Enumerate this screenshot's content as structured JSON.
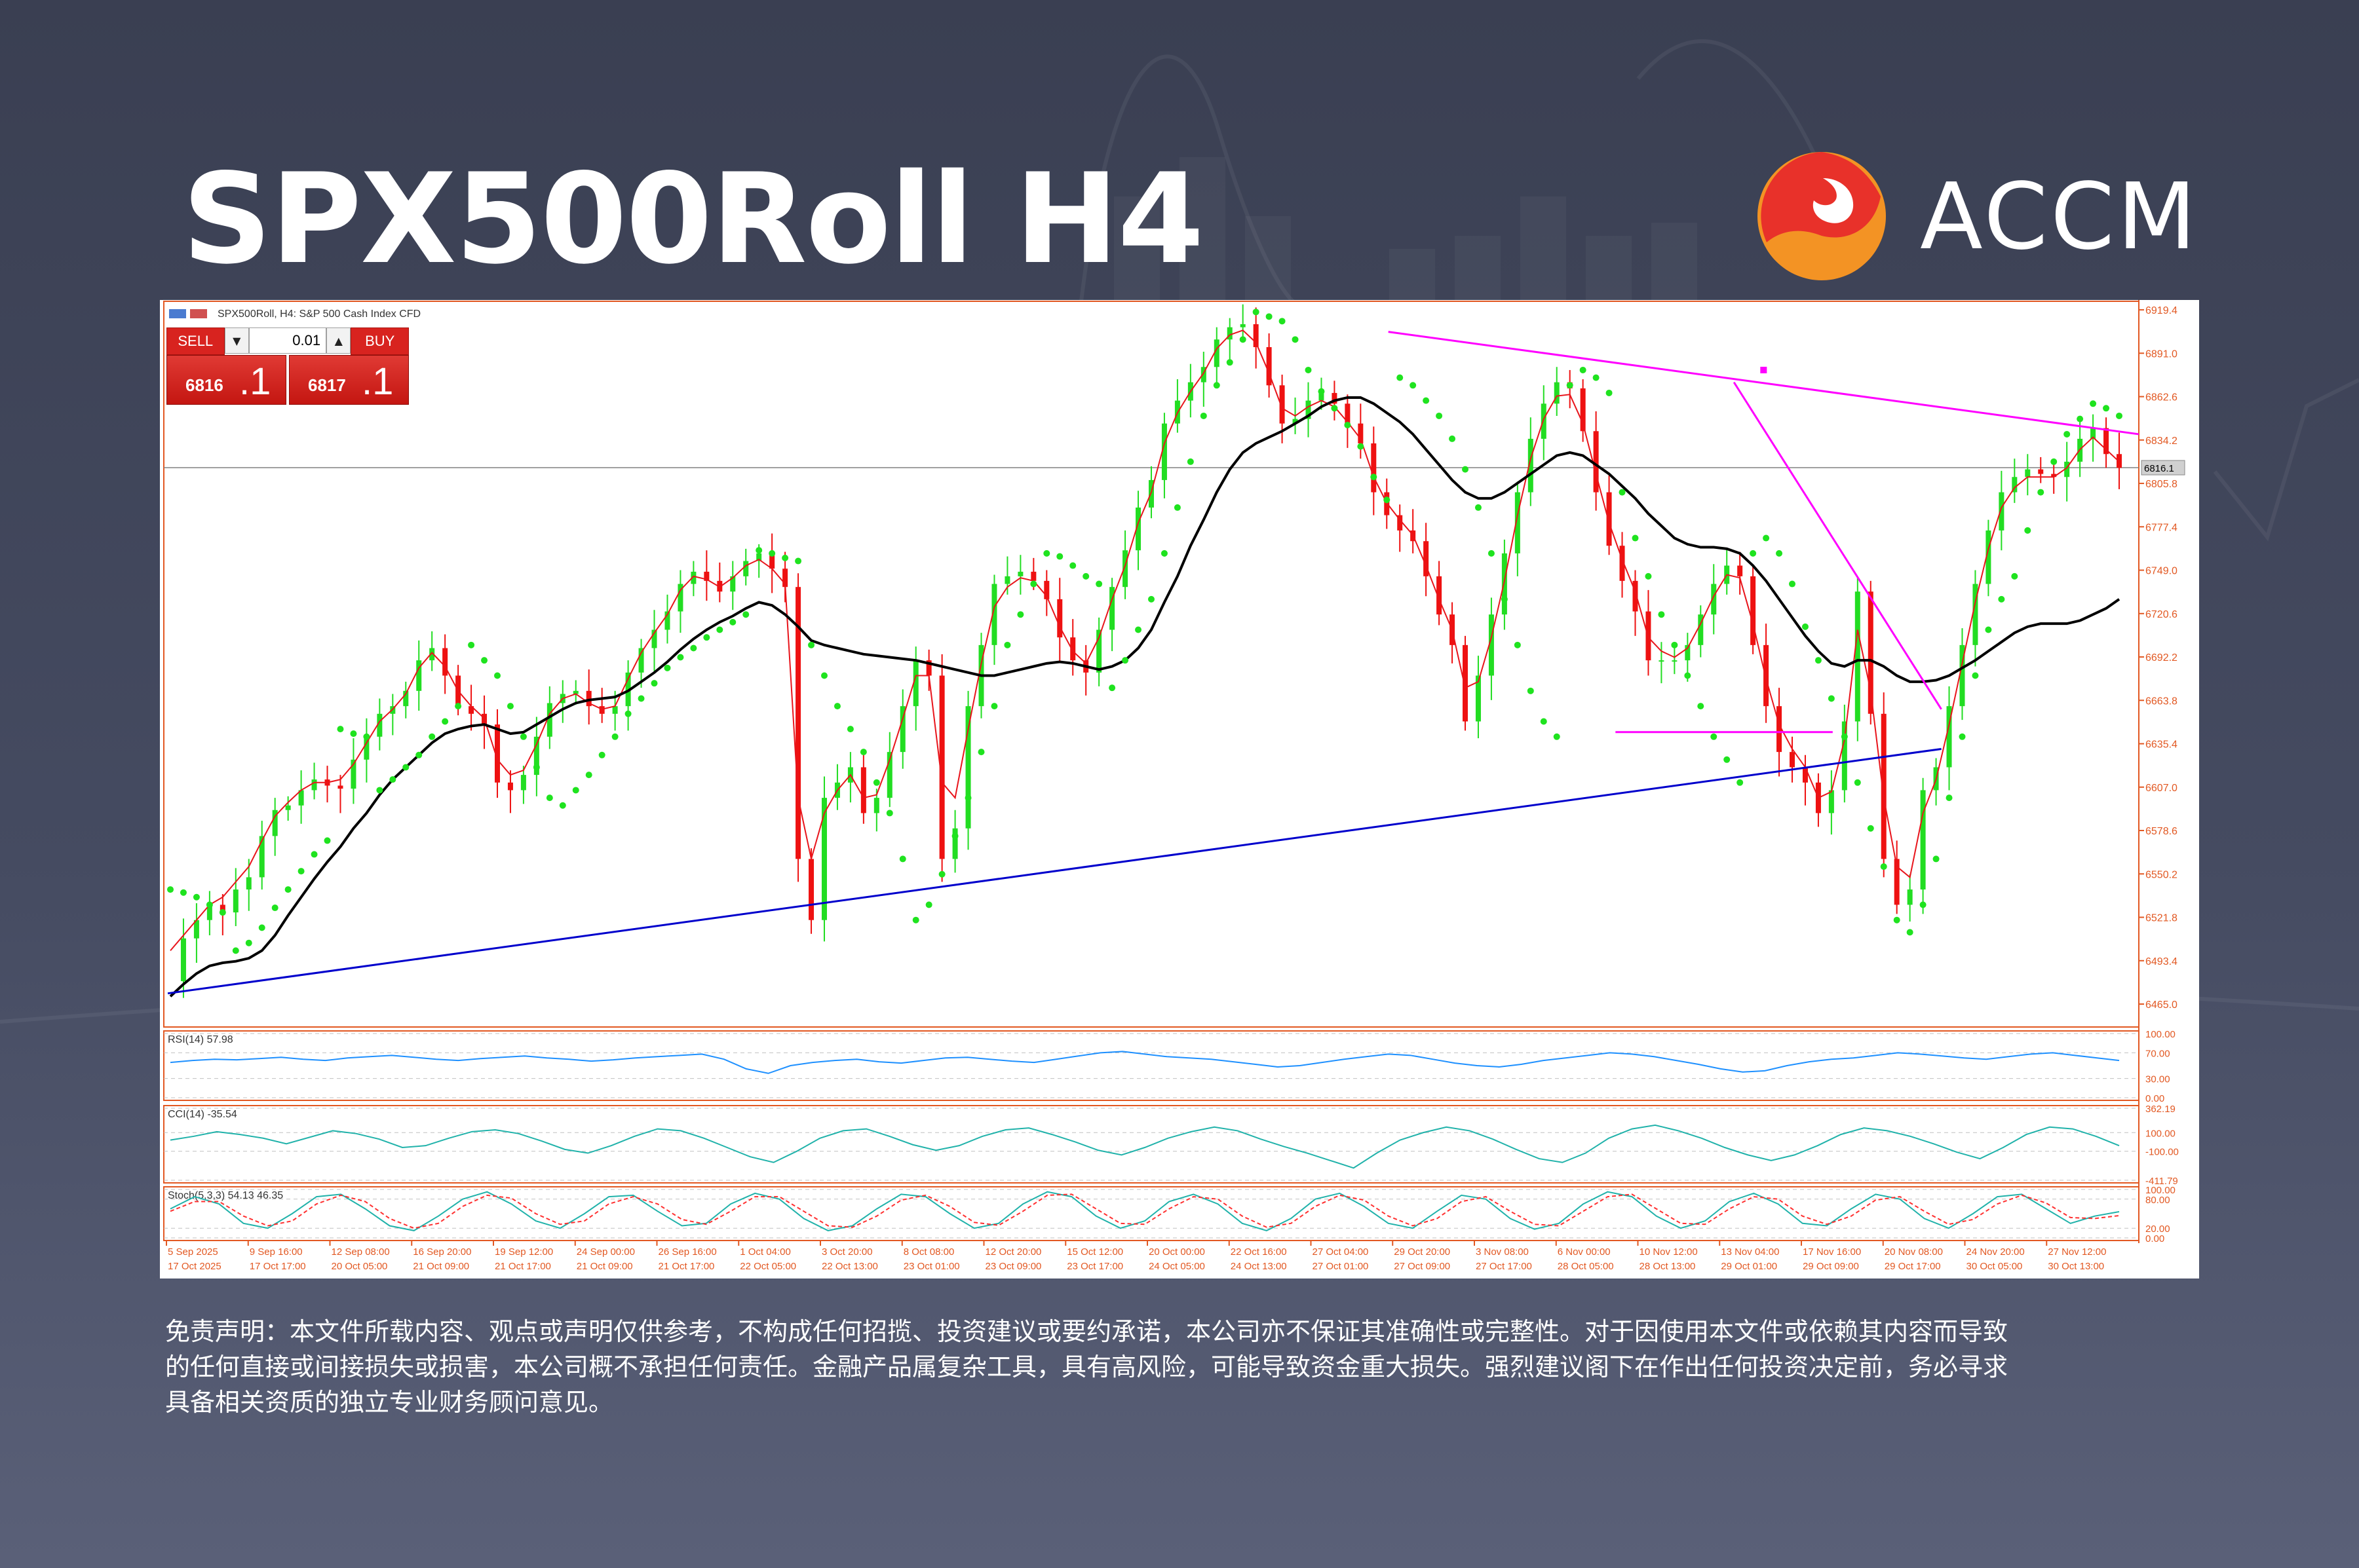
{
  "header": {
    "title": "SPX500Roll H4"
  },
  "brand": {
    "name": "ACCM",
    "logo_colors": [
      "#e8312a",
      "#f39324"
    ]
  },
  "chart_window": {
    "caption": "SPX500Roll, H4:  S&P 500 Cash Index CFD",
    "trade_panel": {
      "sell_label": "SELL",
      "buy_label": "BUY",
      "lot": "0.01",
      "bid_small": "6816",
      "bid_big": ".1",
      "ask_small": "6817",
      "ask_big": ".1"
    }
  },
  "chart_data": [
    {
      "type": "candlestick",
      "title": "SPX500Roll, H4:  S&P 500 Cash Index CFD",
      "y_ticks": [
        "6919.4",
        "6891.0",
        "6862.6",
        "6834.2",
        "6805.8",
        "6777.4",
        "6749.0",
        "6720.6",
        "6692.2",
        "6663.8",
        "6635.4",
        "6607.0",
        "6578.6",
        "6550.2",
        "6521.8",
        "6493.4",
        "6465.0"
      ],
      "ylim": [
        6450,
        6925
      ],
      "current_price_label": "6816.1",
      "current_price": 6816.1,
      "x_ticks_top": [
        "5 Sep 2025",
        "9 Sep 16:00",
        "12 Sep 08:00",
        "16 Sep 20:00",
        "19 Sep 12:00",
        "24 Sep 00:00",
        "26 Sep 16:00",
        "1 Oct 04:00",
        "3 Oct 20:00",
        "8 Oct 08:00",
        "12 Oct 20:00",
        "15 Oct 12:00",
        "20 Oct 00:00",
        "22 Oct 16:00",
        "27 Oct 04:00",
        "29 Oct 20:00",
        "3 Nov 08:00",
        "6 Nov 00:00",
        "10 Nov 12:00",
        "13 Nov 04:00",
        "17 Nov 16:00",
        "20 Nov 08:00",
        "24 Nov 20:00",
        "27 Nov 12:00"
      ],
      "x_ticks_bottom": [
        "17 Oct 2025",
        "17 Oct 17:00",
        "20 Oct 05:00",
        "21 Oct 09:00",
        "21 Oct 17:00",
        "21 Oct 09:00",
        "21 Oct 17:00",
        "22 Oct 05:00",
        "22 Oct 13:00",
        "23 Oct 01:00",
        "23 Oct 09:00",
        "23 Oct 17:00",
        "24 Oct 05:00",
        "24 Oct 13:00",
        "27 Oct 01:00",
        "27 Oct 09:00",
        "27 Oct 17:00",
        "28 Oct 05:00",
        "28 Oct 13:00",
        "29 Oct 01:00",
        "29 Oct 09:00",
        "29 Oct 17:00",
        "30 Oct 05:00",
        "30 Oct 13:00"
      ],
      "close_path": [
        6480,
        6508,
        6520,
        6530,
        6525,
        6540,
        6548,
        6575,
        6592,
        6595,
        6605,
        6612,
        6608,
        6606,
        6625,
        6640,
        6655,
        6660,
        6670,
        6690,
        6698,
        6680,
        6660,
        6655,
        6648,
        6610,
        6605,
        6615,
        6640,
        6662,
        6668,
        6670,
        6660,
        6655,
        6660,
        6682,
        6698,
        6710,
        6722,
        6740,
        6748,
        6742,
        6735,
        6745,
        6755,
        6760,
        6750,
        6738,
        6560,
        6520,
        6600,
        6610,
        6620,
        6590,
        6600,
        6630,
        6660,
        6690,
        6680,
        6560,
        6580,
        6660,
        6700,
        6740,
        6745,
        6748,
        6742,
        6730,
        6705,
        6690,
        6682,
        6710,
        6738,
        6762,
        6790,
        6808,
        6845,
        6860,
        6872,
        6882,
        6900,
        6908,
        6910,
        6895,
        6870,
        6845,
        6848,
        6860,
        6865,
        6858,
        6845,
        6832,
        6800,
        6785,
        6775,
        6768,
        6745,
        6720,
        6700,
        6650,
        6680,
        6720,
        6760,
        6800,
        6835,
        6858,
        6872,
        6868,
        6840,
        6800,
        6765,
        6742,
        6722,
        6690,
        6690,
        6690,
        6700,
        6720,
        6740,
        6752,
        6745,
        6700,
        6660,
        6630,
        6620,
        6610,
        6590,
        6605,
        6650,
        6735,
        6655,
        6560,
        6530,
        6540,
        6605,
        6620,
        6660,
        6700,
        6740,
        6775,
        6800,
        6810,
        6815,
        6812,
        6810,
        6820,
        6835,
        6842,
        6825,
        6816
      ],
      "series": [
        {
          "name": "",
          "color": "#e8141b",
          "values": [
            6500,
            6510,
            6520,
            6530,
            6535,
            6545,
            6555,
            6572,
            6588,
            6597,
            6605,
            6610,
            6610,
            6612,
            6622,
            6636,
            6650,
            6658,
            6668,
            6685,
            6695,
            6686,
            6670,
            6660,
            6652,
            6625,
            6615,
            6618,
            6635,
            6655,
            6665,
            6668,
            6662,
            6658,
            6660,
            6678,
            6695,
            6708,
            6720,
            6736,
            6745,
            6743,
            6738,
            6744,
            6752,
            6756,
            6750,
            6740,
            6600,
            6560,
            6590,
            6605,
            6615,
            6600,
            6602,
            6625,
            6652,
            6680,
            6680,
            6610,
            6600,
            6645,
            6688,
            6725,
            6738,
            6744,
            6742,
            6732,
            6712,
            6696,
            6688,
            6705,
            6730,
            6752,
            6780,
            6800,
            6832,
            6852,
            6866,
            6878,
            6894,
            6903,
            6906,
            6898,
            6878,
            6855,
            6850,
            6856,
            6860,
            6856,
            6846,
            6835,
            6810,
            6793,
            6782,
            6772,
            6752,
            6730,
            6710,
            6672,
            6676,
            6705,
            6742,
            6785,
            6822,
            6848,
            6863,
            6864,
            6845,
            6812,
            6780,
            6756,
            6735,
            6705,
            6696,
            6692,
            6698,
            6714,
            6732,
            6746,
            6744,
            6714,
            6678,
            6648,
            6632,
            6620,
            6600,
            6604,
            6638,
            6710,
            6670,
            6600,
            6555,
            6548,
            6590,
            6612,
            6648,
            6688,
            6728,
            6763,
            6790,
            6803,
            6810,
            6810,
            6810,
            6816,
            6828,
            6836,
            6828,
            6820
          ]
        },
        {
          "name": "",
          "color": "#000000",
          "values": [
            6470,
            6478,
            6485,
            6490,
            6492,
            6493,
            6495,
            6500,
            6510,
            6523,
            6535,
            6547,
            6558,
            6568,
            6580,
            6590,
            6602,
            6612,
            6620,
            6628,
            6636,
            6642,
            6645,
            6647,
            6648,
            6645,
            6642,
            6643,
            6648,
            6653,
            6658,
            6662,
            6664,
            6665,
            6666,
            6670,
            6676,
            6682,
            6689,
            6697,
            6704,
            6710,
            6715,
            6719,
            6724,
            6728,
            6726,
            6720,
            6712,
            6703,
            6700,
            6698,
            6696,
            6694,
            6693,
            6692,
            6691,
            6690,
            6688,
            6686,
            6684,
            6682,
            6680,
            6680,
            6682,
            6684,
            6686,
            6688,
            6689,
            6688,
            6686,
            6684,
            6686,
            6690,
            6698,
            6710,
            6728,
            6745,
            6765,
            6782,
            6800,
            6815,
            6826,
            6832,
            6836,
            6840,
            6845,
            6850,
            6856,
            6860,
            6862,
            6862,
            6858,
            6852,
            6846,
            6838,
            6828,
            6818,
            6808,
            6800,
            6796,
            6796,
            6800,
            6806,
            6812,
            6818,
            6824,
            6826,
            6824,
            6818,
            6812,
            6804,
            6796,
            6786,
            6778,
            6770,
            6766,
            6764,
            6764,
            6763,
            6760,
            6752,
            6742,
            6730,
            6718,
            6706,
            6696,
            6688,
            6686,
            6690,
            6690,
            6686,
            6680,
            6676,
            6676,
            6677,
            6680,
            6685,
            6690,
            6696,
            6702,
            6708,
            6712,
            6714,
            6714,
            6714,
            6716,
            6720,
            6724,
            6730
          ]
        },
        {
          "name": "",
          "color": "#1fe31f",
          "values": [
            6540,
            6538,
            6535,
            6530,
            6525,
            6500,
            6505,
            6515,
            6528,
            6540,
            6552,
            6563,
            6572,
            6645,
            6642,
            6640,
            6605,
            6612,
            6620,
            6628,
            6640,
            6650,
            6660,
            6700,
            6690,
            6680,
            6660,
            6640,
            6620,
            6600,
            6595,
            6605,
            6615,
            6628,
            6640,
            6655,
            6665,
            6675,
            6685,
            6692,
            6698,
            6705,
            6710,
            6715,
            6720,
            6762,
            6760,
            6757,
            6755,
            6700,
            6680,
            6660,
            6645,
            6630,
            6610,
            6590,
            6560,
            6520,
            6530,
            6550,
            6575,
            6600,
            6630,
            6660,
            6700,
            6720,
            6740,
            6760,
            6758,
            6752,
            6745,
            6740,
            6672,
            6690,
            6710,
            6730,
            6760,
            6790,
            6820,
            6850,
            6870,
            6885,
            6900,
            6918,
            6915,
            6912,
            6900,
            6880,
            6866,
            6855,
            6844,
            6830,
            6810,
            6795,
            6875,
            6870,
            6860,
            6850,
            6835,
            6815,
            6790,
            6760,
            6730,
            6700,
            6670,
            6650,
            6640,
            6870,
            6880,
            6875,
            6865,
            6800,
            6770,
            6745,
            6720,
            6700,
            6680,
            6660,
            6640,
            6625,
            6610,
            6760,
            6770,
            6760,
            6740,
            6712,
            6690,
            6665,
            6640,
            6610,
            6580,
            6555,
            6520,
            6512,
            6530,
            6560,
            6600,
            6640,
            6680,
            6710,
            6730,
            6745,
            6775,
            6800,
            6820,
            6838,
            6848,
            6858,
            6855,
            6850
          ]
        },
        {
          "name": "",
          "color": "#ff00ff",
          "values": []
        },
        {
          "name": "",
          "color": "#0000cc",
          "values": []
        }
      ]
    },
    {
      "type": "line",
      "title": "RSI(14) 57.98",
      "y_ticks": [
        "100.00",
        "70.00",
        "30.00",
        "0.00"
      ],
      "ylim": [
        0,
        100
      ],
      "series": [
        {
          "name": "",
          "color": "#1e90ff",
          "values": [
            55,
            58,
            60,
            59,
            61,
            63,
            60,
            58,
            62,
            64,
            66,
            63,
            60,
            58,
            61,
            63,
            65,
            62,
            60,
            57,
            59,
            62,
            64,
            66,
            68,
            60,
            45,
            38,
            50,
            55,
            58,
            60,
            56,
            54,
            58,
            62,
            63,
            60,
            57,
            55,
            60,
            65,
            70,
            72,
            68,
            64,
            62,
            60,
            56,
            52,
            48,
            50,
            55,
            60,
            64,
            68,
            66,
            60,
            54,
            50,
            48,
            52,
            58,
            62,
            66,
            70,
            68,
            64,
            58,
            52,
            45,
            40,
            42,
            50,
            56,
            60,
            62,
            66,
            70,
            68,
            65,
            62,
            60,
            64,
            68,
            70,
            66,
            62,
            58
          ]
        }
      ]
    },
    {
      "type": "line",
      "title": "CCI(14) -35.54",
      "y_ticks": [
        "362.19",
        "100.00",
        "-100.00",
        "-411.79"
      ],
      "ylim": [
        -411.79,
        362.19
      ],
      "series": [
        {
          "name": "",
          "color": "#20b2aa",
          "values": [
            20,
            60,
            110,
            80,
            40,
            -20,
            50,
            120,
            90,
            30,
            -60,
            -40,
            40,
            110,
            130,
            90,
            10,
            -80,
            -120,
            -40,
            60,
            140,
            120,
            40,
            -60,
            -160,
            -220,
            -100,
            40,
            120,
            140,
            60,
            -30,
            -90,
            -40,
            60,
            130,
            150,
            80,
            0,
            -90,
            -140,
            -60,
            40,
            110,
            160,
            120,
            30,
            -50,
            -120,
            -200,
            -280,
            -120,
            20,
            100,
            160,
            120,
            30,
            -80,
            -180,
            -220,
            -120,
            40,
            140,
            180,
            120,
            40,
            -60,
            -140,
            -200,
            -140,
            -40,
            80,
            150,
            120,
            60,
            -20,
            -110,
            -180,
            -60,
            80,
            160,
            140,
            60,
            -40
          ]
        }
      ]
    },
    {
      "type": "line",
      "title": "Stoch(5,3,3) 54.13 46.35",
      "y_ticks": [
        "100.00",
        "80.00",
        "20.00",
        "0.00"
      ],
      "ylim": [
        0,
        100
      ],
      "series": [
        {
          "name": "",
          "color": "#20b2aa",
          "values": [
            60,
            85,
            70,
            30,
            20,
            50,
            85,
            90,
            60,
            25,
            15,
            45,
            80,
            95,
            70,
            35,
            20,
            50,
            85,
            88,
            55,
            25,
            30,
            70,
            92,
            80,
            40,
            15,
            25,
            60,
            90,
            85,
            50,
            20,
            30,
            70,
            95,
            85,
            45,
            20,
            35,
            75,
            90,
            70,
            30,
            15,
            40,
            80,
            92,
            65,
            30,
            20,
            55,
            88,
            80,
            40,
            18,
            30,
            70,
            95,
            85,
            45,
            20,
            35,
            75,
            92,
            70,
            30,
            25,
            60,
            90,
            80,
            40,
            20,
            50,
            85,
            90,
            60,
            30,
            45,
            54
          ]
        },
        {
          "name": "",
          "color": "#ff3030",
          "values": [
            55,
            75,
            75,
            45,
            25,
            35,
            70,
            88,
            75,
            40,
            20,
            30,
            65,
            88,
            82,
            50,
            28,
            35,
            70,
            85,
            70,
            38,
            28,
            55,
            85,
            85,
            55,
            25,
            22,
            45,
            78,
            88,
            65,
            32,
            26,
            55,
            88,
            90,
            60,
            30,
            28,
            60,
            85,
            80,
            45,
            22,
            30,
            65,
            88,
            78,
            45,
            25,
            40,
            75,
            85,
            55,
            28,
            25,
            55,
            85,
            90,
            60,
            30,
            28,
            60,
            85,
            80,
            45,
            28,
            45,
            78,
            85,
            55,
            28,
            38,
            70,
            88,
            72,
            42,
            40,
            46
          ]
        }
      ]
    }
  ],
  "disclaimer": {
    "line1": "免责声明：本文件所载内容、观点或声明仅供参考，不构成任何招揽、投资建议或要约承诺，本公司亦不保证其准确性或完整性。对于因使用本文件或依赖其内容而导致",
    "line2": "的任何直接或间接损失或损害，本公司概不承担任何责任。金融产品属复杂工具，具有高风险，可能导致资金重大损失。强烈建议阁下在作出任何投资决定前，务必寻求",
    "line3": "具备相关资质的独立专业财务顾问意见。"
  }
}
